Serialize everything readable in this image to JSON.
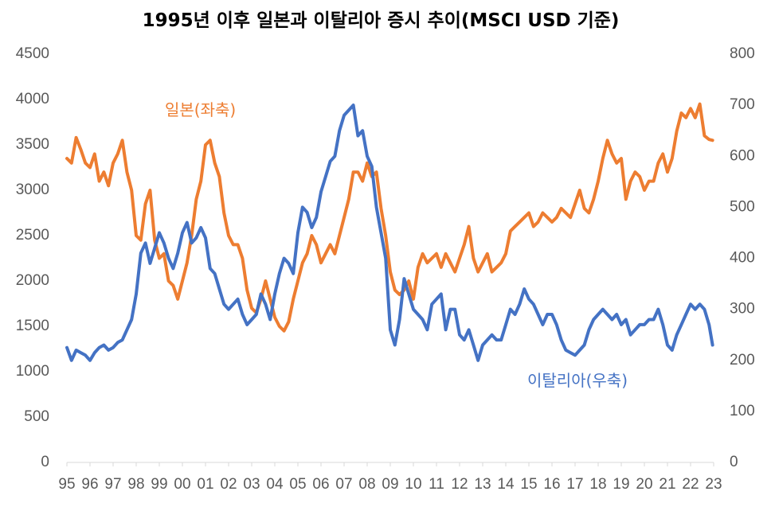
{
  "chart_data": {
    "type": "line",
    "title": "1995년 이후 일본과 이탈리아 증시 추이(MSCI USD 기준)",
    "x_tick_labels": [
      "95",
      "96",
      "97",
      "98",
      "99",
      "00",
      "01",
      "02",
      "03",
      "04",
      "05",
      "06",
      "07",
      "08",
      "09",
      "10",
      "11",
      "12",
      "13",
      "14",
      "15",
      "16",
      "17",
      "18",
      "19",
      "20",
      "21",
      "22",
      "23"
    ],
    "x_range": [
      1995,
      2023
    ],
    "left_axis": {
      "range": [
        0,
        4500
      ],
      "tick_labels": [
        "0",
        "500",
        "1000",
        "1500",
        "2000",
        "2500",
        "3000",
        "3500",
        "4000",
        "4500"
      ]
    },
    "right_axis": {
      "range": [
        0,
        800
      ],
      "tick_labels": [
        "0",
        "100",
        "200",
        "300",
        "400",
        "500",
        "600",
        "700",
        "800"
      ]
    },
    "series": [
      {
        "name": "일본(좌축)",
        "axis": "left",
        "color": "#ED7D31",
        "x": [
          1995.0,
          1995.2,
          1995.4,
          1995.6,
          1995.8,
          1996.0,
          1996.2,
          1996.4,
          1996.6,
          1996.8,
          1997.0,
          1997.2,
          1997.4,
          1997.6,
          1997.8,
          1998.0,
          1998.2,
          1998.4,
          1998.6,
          1998.8,
          1999.0,
          1999.2,
          1999.4,
          1999.6,
          1999.8,
          2000.0,
          2000.2,
          2000.4,
          2000.6,
          2000.8,
          2001.0,
          2001.2,
          2001.4,
          2001.6,
          2001.8,
          2002.0,
          2002.2,
          2002.4,
          2002.6,
          2002.8,
          2003.0,
          2003.2,
          2003.4,
          2003.6,
          2003.8,
          2004.0,
          2004.2,
          2004.4,
          2004.6,
          2004.8,
          2005.0,
          2005.2,
          2005.4,
          2005.6,
          2005.8,
          2006.0,
          2006.2,
          2006.4,
          2006.6,
          2006.8,
          2007.0,
          2007.2,
          2007.4,
          2007.6,
          2007.8,
          2008.0,
          2008.2,
          2008.4,
          2008.6,
          2008.8,
          2009.0,
          2009.2,
          2009.4,
          2009.6,
          2009.8,
          2010.0,
          2010.2,
          2010.4,
          2010.6,
          2010.8,
          2011.0,
          2011.2,
          2011.4,
          2011.6,
          2011.8,
          2012.0,
          2012.2,
          2012.4,
          2012.6,
          2012.8,
          2013.0,
          2013.2,
          2013.4,
          2013.6,
          2013.8,
          2014.0,
          2014.2,
          2014.4,
          2014.6,
          2014.8,
          2015.0,
          2015.2,
          2015.4,
          2015.6,
          2015.8,
          2016.0,
          2016.2,
          2016.4,
          2016.6,
          2016.8,
          2017.0,
          2017.2,
          2017.4,
          2017.6,
          2017.8,
          2018.0,
          2018.2,
          2018.4,
          2018.6,
          2018.8,
          2019.0,
          2019.2,
          2019.4,
          2019.6,
          2019.8,
          2020.0,
          2020.2,
          2020.4,
          2020.6,
          2020.8,
          2021.0,
          2021.2,
          2021.4,
          2021.6,
          2021.8,
          2022.0,
          2022.2,
          2022.4,
          2022.6,
          2022.8,
          2022.95
        ],
        "values": [
          3350,
          3300,
          3580,
          3450,
          3300,
          3250,
          3400,
          3100,
          3200,
          3050,
          3300,
          3400,
          3550,
          3200,
          3000,
          2500,
          2450,
          2850,
          3000,
          2450,
          2250,
          2300,
          2000,
          1950,
          1800,
          2000,
          2200,
          2500,
          2900,
          3100,
          3500,
          3550,
          3300,
          3150,
          2750,
          2500,
          2400,
          2400,
          2250,
          1900,
          1700,
          1650,
          1800,
          2000,
          1800,
          1600,
          1500,
          1450,
          1550,
          1800,
          2000,
          2200,
          2300,
          2500,
          2400,
          2200,
          2300,
          2400,
          2300,
          2500,
          2700,
          2900,
          3200,
          3200,
          3100,
          3300,
          3150,
          3200,
          2800,
          2500,
          2100,
          1900,
          1850,
          1900,
          2000,
          1800,
          2150,
          2300,
          2200,
          2250,
          2300,
          2150,
          2300,
          2200,
          2100,
          2250,
          2400,
          2600,
          2250,
          2100,
          2200,
          2300,
          2100,
          2150,
          2200,
          2300,
          2550,
          2600,
          2650,
          2700,
          2750,
          2600,
          2650,
          2750,
          2700,
          2650,
          2700,
          2800,
          2750,
          2700,
          2850,
          3000,
          2800,
          2750,
          2900,
          3100,
          3350,
          3550,
          3400,
          3300,
          3350,
          2900,
          3100,
          3200,
          3150,
          3000,
          3100,
          3100,
          3300,
          3400,
          3200,
          3350,
          3650,
          3850,
          3800,
          3900,
          3800,
          3950,
          3600,
          3560,
          3550
        ],
        "label": "일본(좌축)"
      },
      {
        "name": "이탈리아(우축)",
        "axis": "right",
        "color": "#4472C4",
        "x": [
          1995.0,
          1995.2,
          1995.4,
          1995.6,
          1995.8,
          1996.0,
          1996.2,
          1996.4,
          1996.6,
          1996.8,
          1997.0,
          1997.2,
          1997.4,
          1997.6,
          1997.8,
          1998.0,
          1998.2,
          1998.4,
          1998.6,
          1998.8,
          1999.0,
          1999.2,
          1999.4,
          1999.6,
          1999.8,
          2000.0,
          2000.2,
          2000.4,
          2000.6,
          2000.8,
          2001.0,
          2001.2,
          2001.4,
          2001.6,
          2001.8,
          2002.0,
          2002.2,
          2002.4,
          2002.6,
          2002.8,
          2003.0,
          2003.2,
          2003.4,
          2003.6,
          2003.8,
          2004.0,
          2004.2,
          2004.4,
          2004.6,
          2004.8,
          2005.0,
          2005.2,
          2005.4,
          2005.6,
          2005.8,
          2006.0,
          2006.2,
          2006.4,
          2006.6,
          2006.8,
          2007.0,
          2007.2,
          2007.4,
          2007.6,
          2007.8,
          2008.0,
          2008.2,
          2008.4,
          2008.6,
          2008.8,
          2009.0,
          2009.2,
          2009.4,
          2009.6,
          2009.8,
          2010.0,
          2010.2,
          2010.4,
          2010.6,
          2010.8,
          2011.0,
          2011.2,
          2011.4,
          2011.6,
          2011.8,
          2012.0,
          2012.2,
          2012.4,
          2012.6,
          2012.8,
          2013.0,
          2013.2,
          2013.4,
          2013.6,
          2013.8,
          2014.0,
          2014.2,
          2014.4,
          2014.6,
          2014.8,
          2015.0,
          2015.2,
          2015.4,
          2015.6,
          2015.8,
          2016.0,
          2016.2,
          2016.4,
          2016.6,
          2016.8,
          2017.0,
          2017.2,
          2017.4,
          2017.6,
          2017.8,
          2018.0,
          2018.2,
          2018.4,
          2018.6,
          2018.8,
          2019.0,
          2019.2,
          2019.4,
          2019.6,
          2019.8,
          2020.0,
          2020.2,
          2020.4,
          2020.6,
          2020.8,
          2021.0,
          2021.2,
          2021.4,
          2021.6,
          2021.8,
          2022.0,
          2022.2,
          2022.4,
          2022.6,
          2022.8,
          2022.95
        ],
        "values": [
          225,
          200,
          220,
          215,
          210,
          200,
          215,
          225,
          230,
          220,
          225,
          235,
          240,
          260,
          280,
          330,
          410,
          430,
          390,
          420,
          450,
          430,
          400,
          380,
          410,
          450,
          470,
          430,
          440,
          460,
          440,
          380,
          370,
          340,
          310,
          300,
          310,
          320,
          290,
          270,
          280,
          290,
          330,
          310,
          280,
          330,
          370,
          400,
          390,
          370,
          450,
          500,
          490,
          460,
          480,
          530,
          560,
          590,
          600,
          650,
          680,
          690,
          700,
          640,
          650,
          600,
          580,
          500,
          450,
          400,
          260,
          230,
          280,
          360,
          330,
          300,
          290,
          280,
          260,
          310,
          320,
          330,
          260,
          300,
          300,
          250,
          240,
          260,
          230,
          200,
          230,
          240,
          250,
          240,
          240,
          270,
          300,
          290,
          310,
          340,
          320,
          310,
          290,
          270,
          290,
          290,
          270,
          240,
          220,
          215,
          210,
          220,
          230,
          260,
          280,
          290,
          300,
          290,
          280,
          290,
          270,
          280,
          250,
          260,
          270,
          270,
          280,
          280,
          300,
          270,
          230,
          220,
          250,
          270,
          290,
          310,
          300,
          310,
          300,
          270,
          230
        ],
        "label": "이탈리아(우축)"
      }
    ]
  }
}
